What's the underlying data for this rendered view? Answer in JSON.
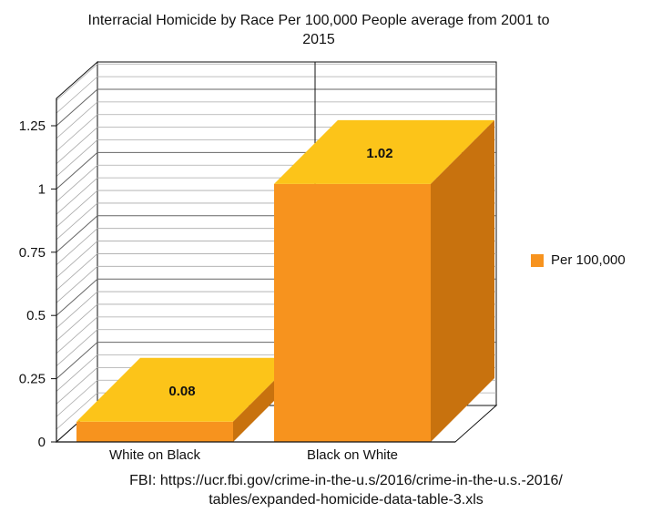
{
  "chart_data": {
    "type": "bar",
    "title_line1": "Interracial Homicide by Race Per 100,000 People average from 2001 to",
    "title_line2": "2015",
    "categories": [
      "White on Black",
      "Black on White"
    ],
    "series": [
      {
        "name": "Per 100,000",
        "values": [
          0.08,
          1.02
        ],
        "labels": [
          "0.08",
          "1.02"
        ]
      }
    ],
    "yticks": [
      "0",
      "0.25",
      "0.5",
      "0.75",
      "1",
      "1.25"
    ],
    "ylim": [
      0,
      1.25
    ],
    "grid": true,
    "legend_position": "right",
    "source_line1": "FBI: https://ucr.fbi.gov/crime-in-the-u.s/2016/crime-in-the-u.s.-2016/",
    "source_line2": "tables/expanded-homicide-data-table-3.xls",
    "colors": {
      "front": "#f7931e",
      "top": "#fcc419",
      "side": "#c8720e",
      "grid": "#888888",
      "axis": "#111111"
    }
  }
}
